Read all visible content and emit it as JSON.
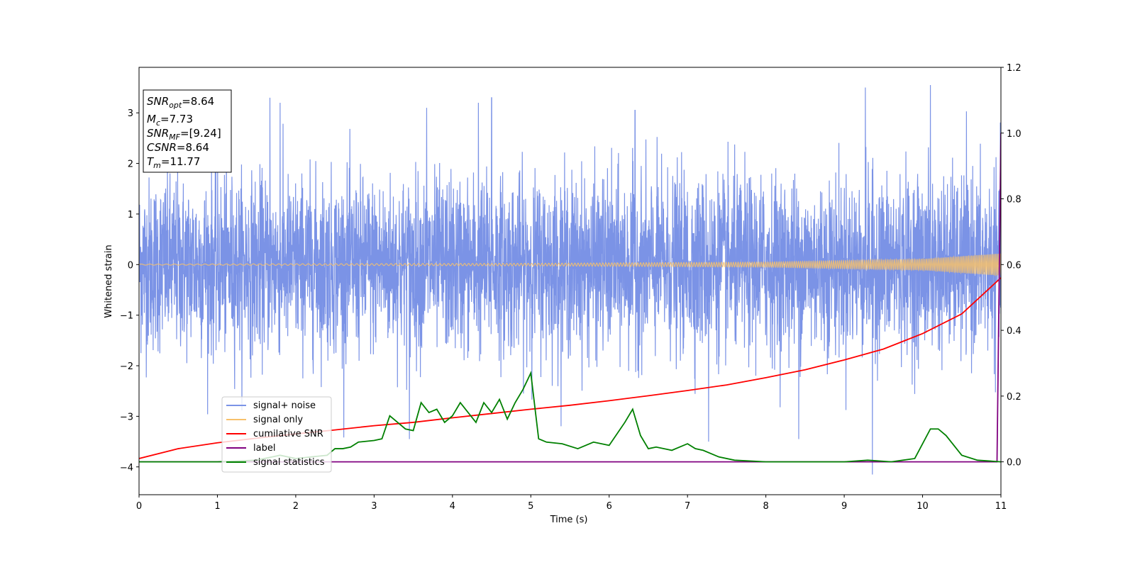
{
  "chart_data": {
    "type": "line",
    "xlabel": "Time (s)",
    "ylabel": "Whitened strain",
    "xlim": [
      0,
      11
    ],
    "ylim_left": [
      -4.55,
      3.9
    ],
    "ylim_right": [
      -0.1,
      1.2
    ],
    "x_ticks": [
      "0",
      "1",
      "2",
      "3",
      "4",
      "5",
      "6",
      "7",
      "8",
      "9",
      "10",
      "11"
    ],
    "y_ticks_left": [
      "−4",
      "−3",
      "−2",
      "−1",
      "0",
      "1",
      "2",
      "3"
    ],
    "y_ticks_right": [
      "0.0",
      "0.2",
      "0.4",
      "0.6",
      "0.8",
      "1.0",
      "1.2"
    ],
    "grid": false,
    "legend_position": "lower-left",
    "info_box": {
      "snr_opt_label": "SNR",
      "snr_opt_sub": "opt",
      "snr_opt_value": "=8.64",
      "mc_label": "M",
      "mc_sub": "c",
      "mc_value": "=7.73",
      "snr_mf_label": "SNR",
      "snr_mf_sub": "MF",
      "snr_mf_value": "=[9.24]",
      "csnr_label": "CSNR",
      "csnr_value": "=8.64",
      "tm_label": "T",
      "tm_sub": "m",
      "tm_value": "=11.77"
    },
    "series": [
      {
        "name": "signal+ noise",
        "color": "#7b93e6",
        "axis": "left",
        "description_values": {
          "typical_amplitude_range": [
            -2.0,
            2.0
          ],
          "extreme_peaks": [
            {
              "x": 1.67,
              "y": 3.3
            },
            {
              "x": 1.8,
              "y": 3.2
            },
            {
              "x": 3.67,
              "y": 3.1
            },
            {
              "x": 4.33,
              "y": 3.2
            },
            {
              "x": 4.5,
              "y": 3.3
            },
            {
              "x": 6.33,
              "y": 3.05
            },
            {
              "x": 9.27,
              "y": 3.5
            },
            {
              "x": 10.1,
              "y": 3.55
            },
            {
              "x": 9.36,
              "y": -4.15
            },
            {
              "x": 3.45,
              "y": -3.45
            },
            {
              "x": 7.27,
              "y": -3.5
            },
            {
              "x": 8.42,
              "y": -3.45
            }
          ]
        }
      },
      {
        "name": "signal only",
        "color": "#f7c16b",
        "axis": "left",
        "envelope_amplitude": [
          [
            0,
            0.01
          ],
          [
            5,
            0.025
          ],
          [
            8,
            0.05
          ],
          [
            10,
            0.11
          ],
          [
            11,
            0.22
          ]
        ]
      },
      {
        "name": "cumilative SNR",
        "color": "#ff0000",
        "axis": "right",
        "x": [
          0,
          0.5,
          1,
          1.5,
          2,
          2.5,
          3,
          3.5,
          4,
          4.5,
          5,
          5.5,
          6,
          6.5,
          7,
          7.5,
          8,
          8.5,
          9,
          9.5,
          10,
          10.5,
          11
        ],
        "y": [
          0.01,
          0.04,
          0.058,
          0.072,
          0.085,
          0.097,
          0.11,
          0.12,
          0.134,
          0.147,
          0.16,
          0.172,
          0.186,
          0.201,
          0.217,
          0.234,
          0.256,
          0.28,
          0.31,
          0.343,
          0.39,
          0.45,
          0.56
        ]
      },
      {
        "name": "label",
        "color": "#800080",
        "axis": "right",
        "x": [
          0,
          10.95,
          11
        ],
        "y": [
          0.0,
          0.0,
          1.0
        ]
      },
      {
        "name": "signal statistics",
        "color": "#008000",
        "axis": "right",
        "x": [
          0,
          0.5,
          1,
          1.5,
          1.8,
          2.0,
          2.2,
          2.4,
          2.5,
          2.6,
          2.7,
          2.8,
          3.0,
          3.1,
          3.2,
          3.3,
          3.4,
          3.5,
          3.6,
          3.7,
          3.8,
          3.9,
          4.0,
          4.1,
          4.2,
          4.3,
          4.4,
          4.5,
          4.6,
          4.7,
          4.8,
          4.9,
          5.0,
          5.1,
          5.2,
          5.4,
          5.6,
          5.8,
          6.0,
          6.2,
          6.3,
          6.4,
          6.5,
          6.6,
          6.8,
          7.0,
          7.1,
          7.2,
          7.4,
          7.6,
          8.0,
          8.5,
          9.0,
          9.3,
          9.6,
          9.9,
          10.1,
          10.2,
          10.3,
          10.5,
          10.7,
          11.0
        ],
        "y": [
          0.0,
          0.0,
          0.0,
          0.005,
          0.02,
          0.01,
          0.015,
          0.02,
          0.04,
          0.04,
          0.045,
          0.06,
          0.065,
          0.07,
          0.14,
          0.12,
          0.1,
          0.095,
          0.18,
          0.15,
          0.16,
          0.12,
          0.14,
          0.18,
          0.15,
          0.12,
          0.18,
          0.15,
          0.19,
          0.13,
          0.18,
          0.22,
          0.27,
          0.07,
          0.06,
          0.055,
          0.04,
          0.06,
          0.05,
          0.12,
          0.16,
          0.08,
          0.04,
          0.045,
          0.035,
          0.055,
          0.04,
          0.035,
          0.015,
          0.005,
          0.0,
          0.0,
          0.0,
          0.005,
          0.0,
          0.01,
          0.1,
          0.1,
          0.08,
          0.02,
          0.005,
          0.0
        ]
      }
    ]
  }
}
